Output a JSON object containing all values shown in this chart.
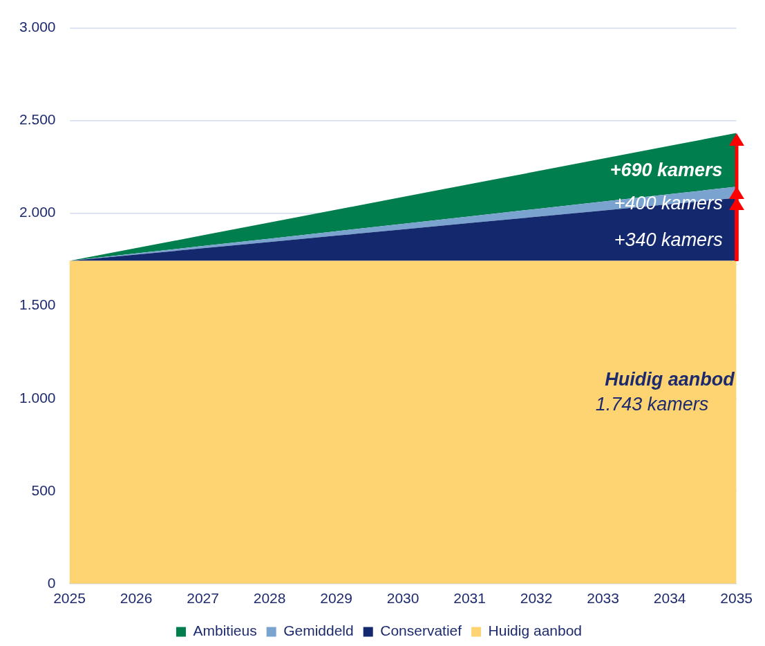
{
  "chart_data": {
    "type": "area",
    "stacked": true,
    "categories": [
      "2025",
      "2026",
      "2027",
      "2028",
      "2029",
      "2030",
      "2031",
      "2032",
      "2033",
      "2034",
      "2035"
    ],
    "series": [
      {
        "name": "Huidig aanbod",
        "color": "#fdd471",
        "values": [
          1743,
          1743,
          1743,
          1743,
          1743,
          1743,
          1743,
          1743,
          1743,
          1743,
          1743
        ]
      },
      {
        "name": "Conservatief",
        "color": "#14286e",
        "values": [
          0,
          34,
          68,
          102,
          136,
          170,
          204,
          238,
          272,
          306,
          340
        ]
      },
      {
        "name": "Gemiddeld",
        "color": "#7ba3d0",
        "values": [
          0,
          6,
          12,
          18,
          24,
          30,
          36,
          42,
          48,
          54,
          60
        ]
      },
      {
        "name": "Ambitieus",
        "color": "#007e4e",
        "values": [
          0,
          29,
          58,
          87,
          116,
          145,
          174,
          203,
          232,
          261,
          290
        ]
      }
    ],
    "ylim": [
      0,
      3000
    ],
    "yticks": [
      0,
      500,
      {
        "value": 1000,
        "label": "1.000"
      },
      {
        "value": 1500,
        "label": "1.500"
      },
      {
        "value": 2000,
        "label": "2.000"
      },
      {
        "value": 2500,
        "label": "2.500"
      },
      {
        "value": 3000,
        "label": "3.000"
      }
    ],
    "grid": "y",
    "legend": "bottom",
    "annotations": [
      {
        "text": "+690 kamers",
        "x": "2035",
        "y": 2228
      },
      {
        "text": "+400 kamers",
        "x": "2035",
        "y": 2048
      },
      {
        "text": "+340 kamers",
        "x": "2035",
        "y": 1853
      },
      {
        "text": "Huidig aanbod",
        "x": "2035",
        "y": 1099
      },
      {
        "text": "1.743 kamers",
        "x": "2035",
        "y": 963
      }
    ]
  }
}
